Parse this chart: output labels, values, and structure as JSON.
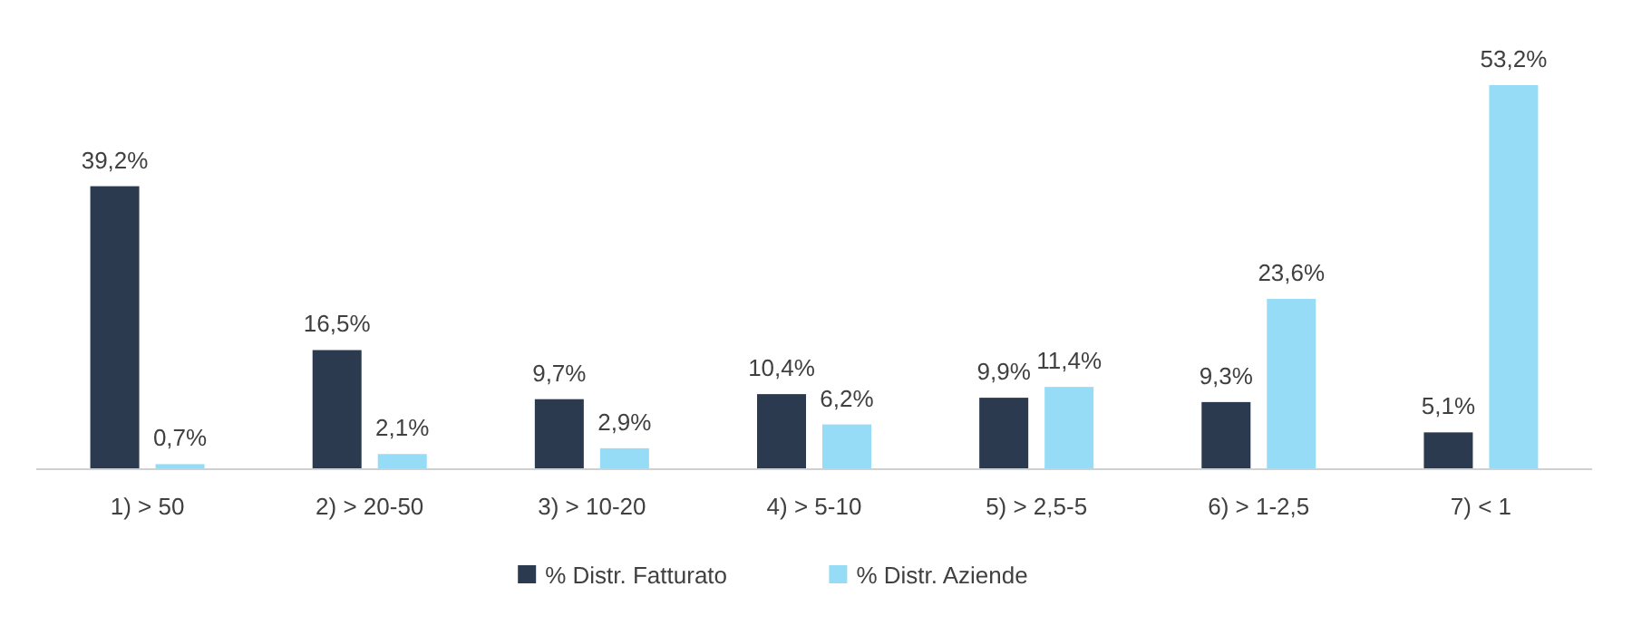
{
  "chart_data": {
    "type": "bar",
    "categories": [
      "1) > 50",
      "2) > 20-50",
      "3) > 10-20",
      "4) > 5-10",
      "5) > 2,5-5",
      "6) > 1-2,5",
      "7) < 1"
    ],
    "series": [
      {
        "name": "% Distr. Fatturato",
        "color": "#2b3a4e",
        "values": [
          39.2,
          16.5,
          9.7,
          10.4,
          9.9,
          9.3,
          5.1
        ],
        "value_labels": [
          "39,2%",
          "16,5%",
          "9,7%",
          "10,4%",
          "9,9%",
          "9,3%",
          "5,1%"
        ]
      },
      {
        "name": "% Distr. Aziende",
        "color": "#97dcf7",
        "values": [
          0.7,
          2.1,
          2.9,
          6.2,
          11.4,
          23.6,
          53.2
        ],
        "value_labels": [
          "0,7%",
          "2,1%",
          "2,9%",
          "6,2%",
          "11,4%",
          "23,6%",
          "53,2%"
        ]
      }
    ],
    "legend": "bottom"
  }
}
